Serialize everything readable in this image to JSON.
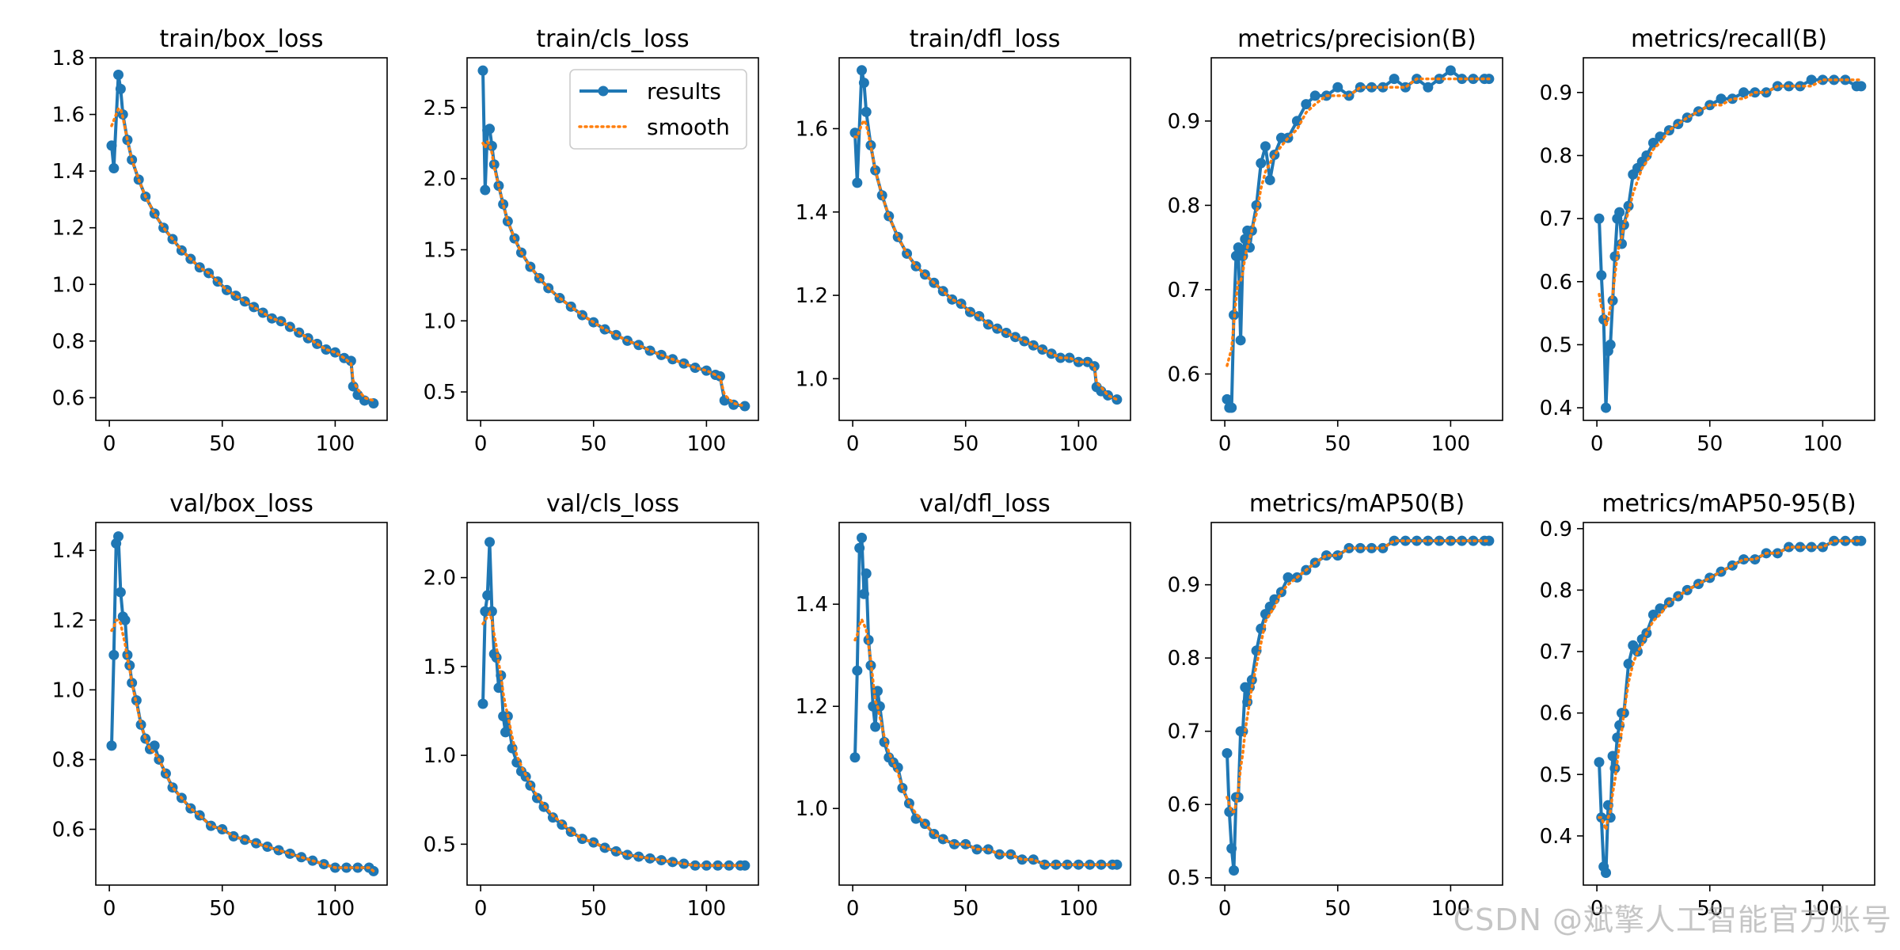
{
  "figure": {
    "watermark": "CSDN @斌擎人工智能官方账号",
    "colors": {
      "results": "#1f77b4",
      "smooth": "#ff7f0e",
      "axis": "#000000",
      "background": "#ffffff"
    }
  },
  "chart_data": [
    {
      "type": "line",
      "title": "train/box_loss",
      "xlim": [
        -6,
        123
      ],
      "ylim": [
        0.52,
        1.8
      ],
      "xticks": [
        0,
        50,
        100
      ],
      "yticks": [
        0.6,
        0.8,
        1.0,
        1.2,
        1.4,
        1.6,
        1.8
      ],
      "x": [
        1,
        2,
        4,
        5,
        6,
        8,
        10,
        13,
        16,
        20,
        24,
        28,
        32,
        36,
        40,
        44,
        48,
        52,
        56,
        60,
        64,
        68,
        72,
        76,
        80,
        84,
        88,
        92,
        96,
        100,
        104,
        107,
        108,
        110,
        113,
        117
      ],
      "values": [
        1.49,
        1.41,
        1.74,
        1.69,
        1.6,
        1.51,
        1.44,
        1.37,
        1.31,
        1.25,
        1.2,
        1.16,
        1.12,
        1.09,
        1.06,
        1.04,
        1.01,
        0.98,
        0.96,
        0.94,
        0.92,
        0.9,
        0.88,
        0.87,
        0.85,
        0.83,
        0.81,
        0.79,
        0.77,
        0.76,
        0.74,
        0.73,
        0.64,
        0.61,
        0.59,
        0.58
      ],
      "smooth": [
        1.56,
        1.58,
        1.62,
        1.62,
        1.59,
        1.51,
        1.44,
        1.37,
        1.31,
        1.25,
        1.2,
        1.16,
        1.12,
        1.09,
        1.06,
        1.04,
        1.01,
        0.98,
        0.96,
        0.94,
        0.92,
        0.9,
        0.88,
        0.87,
        0.85,
        0.83,
        0.81,
        0.79,
        0.77,
        0.76,
        0.74,
        0.72,
        0.66,
        0.63,
        0.6,
        0.59
      ]
    },
    {
      "type": "line",
      "title": "train/cls_loss",
      "xlim": [
        -6,
        123
      ],
      "ylim": [
        0.3,
        2.85
      ],
      "xticks": [
        0,
        50,
        100
      ],
      "yticks": [
        0.5,
        1.0,
        1.5,
        2.0,
        2.5
      ],
      "x": [
        1,
        2,
        3,
        4,
        5,
        6,
        8,
        10,
        12,
        15,
        18,
        22,
        26,
        30,
        35,
        40,
        45,
        50,
        55,
        60,
        65,
        70,
        75,
        80,
        85,
        90,
        95,
        100,
        104,
        106,
        108,
        112,
        117
      ],
      "values": [
        2.76,
        1.92,
        2.34,
        2.35,
        2.23,
        2.1,
        1.95,
        1.82,
        1.7,
        1.58,
        1.48,
        1.38,
        1.3,
        1.23,
        1.16,
        1.1,
        1.04,
        0.99,
        0.94,
        0.9,
        0.86,
        0.83,
        0.79,
        0.76,
        0.73,
        0.7,
        0.67,
        0.65,
        0.62,
        0.61,
        0.44,
        0.41,
        0.4
      ],
      "smooth": [
        2.25,
        2.22,
        2.26,
        2.24,
        2.18,
        2.08,
        1.95,
        1.82,
        1.7,
        1.58,
        1.48,
        1.38,
        1.3,
        1.23,
        1.16,
        1.1,
        1.04,
        0.99,
        0.94,
        0.9,
        0.86,
        0.83,
        0.79,
        0.76,
        0.73,
        0.7,
        0.67,
        0.65,
        0.62,
        0.6,
        0.48,
        0.42,
        0.4
      ]
    },
    {
      "type": "line",
      "title": "train/dfl_loss",
      "xlim": [
        -6,
        123
      ],
      "ylim": [
        0.9,
        1.77
      ],
      "xticks": [
        0,
        50,
        100
      ],
      "yticks": [
        1.0,
        1.2,
        1.4,
        1.6
      ],
      "x": [
        1,
        2,
        4,
        5,
        6,
        8,
        10,
        13,
        16,
        20,
        24,
        28,
        32,
        36,
        40,
        44,
        48,
        52,
        56,
        60,
        64,
        68,
        72,
        76,
        80,
        84,
        88,
        92,
        96,
        100,
        104,
        107,
        108,
        110,
        113,
        117
      ],
      "values": [
        1.59,
        1.47,
        1.74,
        1.71,
        1.64,
        1.56,
        1.5,
        1.44,
        1.39,
        1.34,
        1.3,
        1.27,
        1.25,
        1.23,
        1.21,
        1.19,
        1.18,
        1.16,
        1.15,
        1.13,
        1.12,
        1.11,
        1.1,
        1.09,
        1.08,
        1.07,
        1.06,
        1.05,
        1.05,
        1.04,
        1.04,
        1.03,
        0.98,
        0.97,
        0.96,
        0.95
      ],
      "smooth": [
        1.58,
        1.58,
        1.61,
        1.62,
        1.61,
        1.56,
        1.5,
        1.44,
        1.39,
        1.34,
        1.3,
        1.27,
        1.25,
        1.23,
        1.21,
        1.19,
        1.18,
        1.16,
        1.15,
        1.13,
        1.12,
        1.11,
        1.1,
        1.09,
        1.08,
        1.07,
        1.06,
        1.05,
        1.05,
        1.04,
        1.04,
        1.03,
        0.99,
        0.98,
        0.96,
        0.95
      ]
    },
    {
      "type": "line",
      "title": "metrics/precision(B)",
      "xlim": [
        -6,
        123
      ],
      "ylim": [
        0.545,
        0.975
      ],
      "xticks": [
        0,
        50,
        100
      ],
      "yticks": [
        0.6,
        0.7,
        0.8,
        0.9
      ],
      "x": [
        1,
        2,
        3,
        4,
        5,
        6,
        7,
        8,
        9,
        10,
        11,
        12,
        14,
        16,
        18,
        20,
        22,
        25,
        28,
        32,
        36,
        40,
        45,
        50,
        55,
        60,
        65,
        70,
        75,
        80,
        85,
        90,
        95,
        100,
        105,
        110,
        115,
        117
      ],
      "values": [
        0.57,
        0.56,
        0.56,
        0.67,
        0.74,
        0.75,
        0.64,
        0.74,
        0.76,
        0.77,
        0.75,
        0.77,
        0.8,
        0.85,
        0.87,
        0.83,
        0.86,
        0.88,
        0.88,
        0.9,
        0.92,
        0.93,
        0.93,
        0.94,
        0.93,
        0.94,
        0.94,
        0.94,
        0.95,
        0.94,
        0.95,
        0.94,
        0.95,
        0.96,
        0.95,
        0.95,
        0.95,
        0.95
      ],
      "smooth": [
        0.61,
        0.62,
        0.63,
        0.66,
        0.69,
        0.71,
        0.71,
        0.72,
        0.74,
        0.75,
        0.76,
        0.77,
        0.79,
        0.82,
        0.84,
        0.85,
        0.86,
        0.87,
        0.88,
        0.89,
        0.91,
        0.92,
        0.93,
        0.93,
        0.93,
        0.94,
        0.94,
        0.94,
        0.94,
        0.94,
        0.95,
        0.95,
        0.95,
        0.95,
        0.95,
        0.95,
        0.95,
        0.95
      ]
    },
    {
      "type": "line",
      "title": "metrics/recall(B)",
      "xlim": [
        -6,
        123
      ],
      "ylim": [
        0.38,
        0.955
      ],
      "xticks": [
        0,
        50,
        100
      ],
      "yticks": [
        0.4,
        0.5,
        0.6,
        0.7,
        0.8,
        0.9
      ],
      "x": [
        1,
        2,
        3,
        4,
        5,
        6,
        7,
        8,
        9,
        10,
        11,
        12,
        14,
        16,
        18,
        20,
        22,
        25,
        28,
        32,
        36,
        40,
        45,
        50,
        55,
        60,
        65,
        70,
        75,
        80,
        85,
        90,
        95,
        100,
        105,
        110,
        115,
        117
      ],
      "values": [
        0.7,
        0.61,
        0.54,
        0.4,
        0.49,
        0.5,
        0.57,
        0.64,
        0.7,
        0.71,
        0.66,
        0.69,
        0.72,
        0.77,
        0.78,
        0.79,
        0.8,
        0.82,
        0.83,
        0.84,
        0.85,
        0.86,
        0.87,
        0.88,
        0.89,
        0.89,
        0.9,
        0.9,
        0.9,
        0.91,
        0.91,
        0.91,
        0.92,
        0.92,
        0.92,
        0.92,
        0.91,
        0.91
      ],
      "smooth": [
        0.58,
        0.56,
        0.55,
        0.53,
        0.54,
        0.56,
        0.58,
        0.61,
        0.64,
        0.66,
        0.67,
        0.69,
        0.71,
        0.74,
        0.76,
        0.78,
        0.79,
        0.81,
        0.82,
        0.84,
        0.85,
        0.86,
        0.87,
        0.88,
        0.88,
        0.89,
        0.89,
        0.9,
        0.9,
        0.91,
        0.91,
        0.91,
        0.91,
        0.92,
        0.92,
        0.92,
        0.92,
        0.92
      ]
    },
    {
      "type": "line",
      "title": "val/box_loss",
      "xlim": [
        -6,
        123
      ],
      "ylim": [
        0.44,
        1.48
      ],
      "xticks": [
        0,
        50,
        100
      ],
      "yticks": [
        0.6,
        0.8,
        1.0,
        1.2,
        1.4
      ],
      "x": [
        1,
        2,
        3,
        4,
        5,
        6,
        7,
        8,
        9,
        10,
        12,
        14,
        16,
        18,
        20,
        22,
        25,
        28,
        32,
        36,
        40,
        45,
        50,
        55,
        60,
        65,
        70,
        75,
        80,
        85,
        90,
        95,
        100,
        105,
        110,
        115,
        117
      ],
      "values": [
        0.84,
        1.1,
        1.42,
        1.44,
        1.28,
        1.21,
        1.2,
        1.1,
        1.07,
        1.02,
        0.97,
        0.9,
        0.86,
        0.83,
        0.84,
        0.8,
        0.76,
        0.72,
        0.69,
        0.66,
        0.64,
        0.61,
        0.6,
        0.58,
        0.57,
        0.56,
        0.55,
        0.54,
        0.53,
        0.52,
        0.51,
        0.5,
        0.49,
        0.49,
        0.49,
        0.49,
        0.48
      ],
      "smooth": [
        1.17,
        1.18,
        1.2,
        1.2,
        1.19,
        1.16,
        1.13,
        1.09,
        1.06,
        1.02,
        0.96,
        0.9,
        0.86,
        0.83,
        0.82,
        0.8,
        0.76,
        0.72,
        0.69,
        0.66,
        0.64,
        0.61,
        0.6,
        0.58,
        0.57,
        0.56,
        0.55,
        0.54,
        0.53,
        0.52,
        0.51,
        0.5,
        0.49,
        0.49,
        0.49,
        0.49,
        0.48
      ]
    },
    {
      "type": "line",
      "title": "val/cls_loss",
      "xlim": [
        -6,
        123
      ],
      "ylim": [
        0.27,
        2.31
      ],
      "xticks": [
        0,
        50,
        100
      ],
      "yticks": [
        0.5,
        1.0,
        1.5,
        2.0
      ],
      "x": [
        1,
        2,
        3,
        4,
        5,
        6,
        7,
        8,
        9,
        10,
        11,
        12,
        14,
        16,
        18,
        20,
        22,
        25,
        28,
        32,
        36,
        40,
        45,
        50,
        55,
        60,
        65,
        70,
        75,
        80,
        85,
        90,
        95,
        100,
        105,
        110,
        115,
        117
      ],
      "values": [
        1.29,
        1.81,
        1.9,
        2.2,
        1.81,
        1.57,
        1.55,
        1.38,
        1.45,
        1.22,
        1.13,
        1.22,
        1.04,
        0.96,
        0.91,
        0.88,
        0.83,
        0.76,
        0.71,
        0.65,
        0.61,
        0.57,
        0.53,
        0.51,
        0.48,
        0.46,
        0.44,
        0.43,
        0.42,
        0.41,
        0.4,
        0.39,
        0.38,
        0.38,
        0.38,
        0.38,
        0.38,
        0.38
      ],
      "smooth": [
        1.74,
        1.76,
        1.78,
        1.8,
        1.76,
        1.68,
        1.61,
        1.52,
        1.45,
        1.35,
        1.28,
        1.23,
        1.1,
        1.0,
        0.94,
        0.89,
        0.84,
        0.77,
        0.72,
        0.66,
        0.62,
        0.57,
        0.53,
        0.51,
        0.48,
        0.46,
        0.44,
        0.43,
        0.42,
        0.41,
        0.4,
        0.39,
        0.38,
        0.38,
        0.38,
        0.38,
        0.38,
        0.38
      ]
    },
    {
      "type": "line",
      "title": "val/dfl_loss",
      "xlim": [
        -6,
        123
      ],
      "ylim": [
        0.85,
        1.56
      ],
      "xticks": [
        0,
        50,
        100
      ],
      "yticks": [
        1.0,
        1.2,
        1.4
      ],
      "x": [
        1,
        2,
        3,
        4,
        5,
        6,
        7,
        8,
        9,
        10,
        11,
        12,
        14,
        16,
        18,
        20,
        22,
        25,
        28,
        32,
        36,
        40,
        45,
        50,
        55,
        60,
        65,
        70,
        75,
        80,
        85,
        90,
        95,
        100,
        105,
        110,
        115,
        117
      ],
      "values": [
        1.1,
        1.27,
        1.51,
        1.53,
        1.42,
        1.46,
        1.33,
        1.28,
        1.2,
        1.16,
        1.23,
        1.2,
        1.13,
        1.1,
        1.09,
        1.08,
        1.04,
        1.01,
        0.98,
        0.97,
        0.95,
        0.94,
        0.93,
        0.93,
        0.92,
        0.92,
        0.91,
        0.91,
        0.9,
        0.9,
        0.89,
        0.89,
        0.89,
        0.89,
        0.89,
        0.89,
        0.89,
        0.89
      ],
      "smooth": [
        1.33,
        1.34,
        1.36,
        1.37,
        1.36,
        1.35,
        1.32,
        1.29,
        1.25,
        1.21,
        1.2,
        1.18,
        1.14,
        1.11,
        1.09,
        1.07,
        1.04,
        1.01,
        0.99,
        0.97,
        0.95,
        0.94,
        0.93,
        0.93,
        0.92,
        0.92,
        0.91,
        0.91,
        0.9,
        0.9,
        0.89,
        0.89,
        0.89,
        0.89,
        0.89,
        0.89,
        0.89,
        0.89
      ]
    },
    {
      "type": "line",
      "title": "metrics/mAP50(B)",
      "xlim": [
        -6,
        123
      ],
      "ylim": [
        0.49,
        0.985
      ],
      "xticks": [
        0,
        50,
        100
      ],
      "yticks": [
        0.5,
        0.6,
        0.7,
        0.8,
        0.9
      ],
      "x": [
        1,
        2,
        3,
        4,
        5,
        6,
        7,
        8,
        9,
        10,
        11,
        12,
        14,
        16,
        18,
        20,
        22,
        25,
        28,
        32,
        36,
        40,
        45,
        50,
        55,
        60,
        65,
        70,
        75,
        80,
        85,
        90,
        95,
        100,
        105,
        110,
        115,
        117
      ],
      "values": [
        0.67,
        0.59,
        0.54,
        0.51,
        0.61,
        0.61,
        0.7,
        0.7,
        0.76,
        0.74,
        0.76,
        0.77,
        0.81,
        0.84,
        0.86,
        0.87,
        0.88,
        0.89,
        0.91,
        0.91,
        0.92,
        0.93,
        0.94,
        0.94,
        0.95,
        0.95,
        0.95,
        0.95,
        0.96,
        0.96,
        0.96,
        0.96,
        0.96,
        0.96,
        0.96,
        0.96,
        0.96,
        0.96
      ],
      "smooth": [
        0.61,
        0.6,
        0.59,
        0.59,
        0.6,
        0.62,
        0.65,
        0.67,
        0.7,
        0.72,
        0.74,
        0.76,
        0.79,
        0.82,
        0.85,
        0.86,
        0.87,
        0.89,
        0.9,
        0.91,
        0.92,
        0.93,
        0.94,
        0.94,
        0.95,
        0.95,
        0.95,
        0.95,
        0.96,
        0.96,
        0.96,
        0.96,
        0.96,
        0.96,
        0.96,
        0.96,
        0.96,
        0.96
      ]
    },
    {
      "type": "line",
      "title": "metrics/mAP50-95(B)",
      "xlim": [
        -6,
        123
      ],
      "ylim": [
        0.32,
        0.91
      ],
      "xticks": [
        0,
        50,
        100
      ],
      "yticks": [
        0.4,
        0.5,
        0.6,
        0.7,
        0.8,
        0.9
      ],
      "x": [
        1,
        2,
        3,
        4,
        5,
        6,
        7,
        8,
        9,
        10,
        11,
        12,
        14,
        16,
        18,
        20,
        22,
        25,
        28,
        32,
        36,
        40,
        45,
        50,
        55,
        60,
        65,
        70,
        75,
        80,
        85,
        90,
        95,
        100,
        105,
        110,
        115,
        117
      ],
      "values": [
        0.52,
        0.43,
        0.35,
        0.34,
        0.45,
        0.43,
        0.53,
        0.51,
        0.56,
        0.58,
        0.6,
        0.6,
        0.68,
        0.71,
        0.7,
        0.72,
        0.73,
        0.76,
        0.77,
        0.78,
        0.79,
        0.8,
        0.81,
        0.82,
        0.83,
        0.84,
        0.85,
        0.85,
        0.86,
        0.86,
        0.87,
        0.87,
        0.87,
        0.87,
        0.88,
        0.88,
        0.88,
        0.88
      ],
      "smooth": [
        0.43,
        0.43,
        0.42,
        0.41,
        0.43,
        0.44,
        0.47,
        0.49,
        0.52,
        0.55,
        0.57,
        0.6,
        0.65,
        0.68,
        0.7,
        0.71,
        0.73,
        0.75,
        0.76,
        0.78,
        0.79,
        0.8,
        0.81,
        0.82,
        0.83,
        0.84,
        0.85,
        0.85,
        0.86,
        0.86,
        0.87,
        0.87,
        0.87,
        0.87,
        0.88,
        0.88,
        0.88,
        0.88
      ]
    }
  ],
  "legend": {
    "items": [
      "results",
      "smooth"
    ],
    "placement": "upper-right of train/cls_loss"
  }
}
